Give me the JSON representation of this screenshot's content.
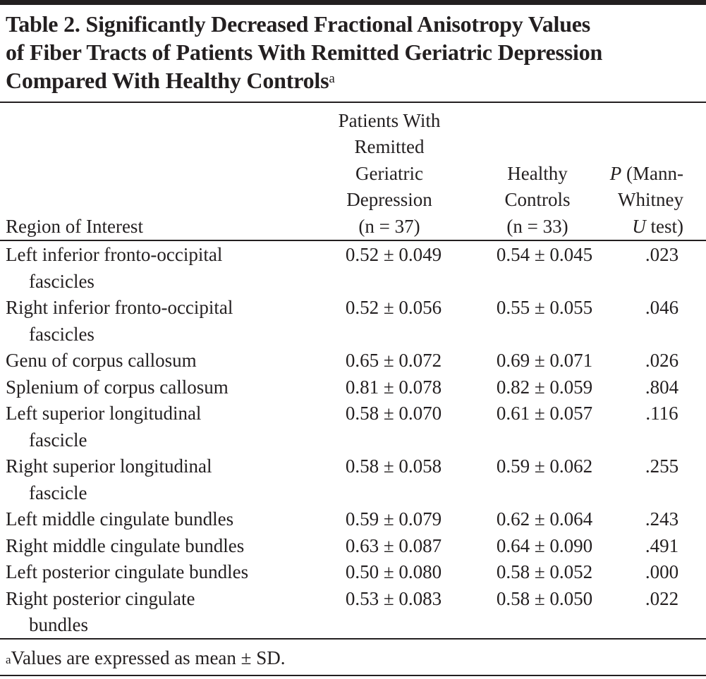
{
  "title": {
    "lines": [
      "Table 2. Significantly Decreased Fractional Anisotropy Values",
      "of Fiber Tracts of Patients With Remitted Geriatric Depression",
      "Compared With Healthy Controls"
    ],
    "footnote_marker": "a"
  },
  "columns": {
    "region": [
      "Region of Interest"
    ],
    "patients": [
      "Patients With",
      "Remitted",
      "Geriatric",
      "Depression",
      "(n = 37)"
    ],
    "controls": [
      "Healthy",
      "Controls",
      "(n = 33)"
    ],
    "p": [
      "P (Mann-",
      "Whitney",
      "U test)"
    ]
  },
  "rows": [
    {
      "region": [
        "Left inferior fronto-occipital",
        "fascicles"
      ],
      "patients": "0.52 ± 0.049",
      "controls": "0.54 ± 0.045",
      "p": ".023"
    },
    {
      "region": [
        "Right inferior fronto-occipital",
        "fascicles"
      ],
      "patients": "0.52 ± 0.056",
      "controls": "0.55 ± 0.055",
      "p": ".046"
    },
    {
      "region": [
        "Genu of corpus callosum"
      ],
      "patients": "0.65 ± 0.072",
      "controls": "0.69 ± 0.071",
      "p": ".026"
    },
    {
      "region": [
        "Splenium of corpus callosum"
      ],
      "patients": "0.81 ± 0.078",
      "controls": "0.82 ± 0.059",
      "p": ".804"
    },
    {
      "region": [
        "Left superior longitudinal",
        "fascicle"
      ],
      "patients": "0.58 ± 0.070",
      "controls": "0.61 ± 0.057",
      "p": ".116"
    },
    {
      "region": [
        "Right superior longitudinal",
        "fascicle"
      ],
      "patients": "0.58 ± 0.058",
      "controls": "0.59 ± 0.062",
      "p": ".255"
    },
    {
      "region": [
        "Left middle cingulate bundles"
      ],
      "patients": "0.59 ± 0.079",
      "controls": "0.62 ± 0.064",
      "p": ".243"
    },
    {
      "region": [
        "Right middle cingulate bundles"
      ],
      "patients": "0.63 ± 0.087",
      "controls": "0.64 ± 0.090",
      "p": ".491"
    },
    {
      "region": [
        "Left posterior cingulate bundles"
      ],
      "patients": "0.50 ± 0.080",
      "controls": "0.58 ± 0.052",
      "p": ".000"
    },
    {
      "region": [
        "Right posterior cingulate",
        "bundles"
      ],
      "patients": "0.53 ± 0.083",
      "controls": "0.58 ± 0.050",
      "p": ".022"
    }
  ],
  "footnote": {
    "marker": "a",
    "text": "Values are expressed as mean ± SD."
  }
}
